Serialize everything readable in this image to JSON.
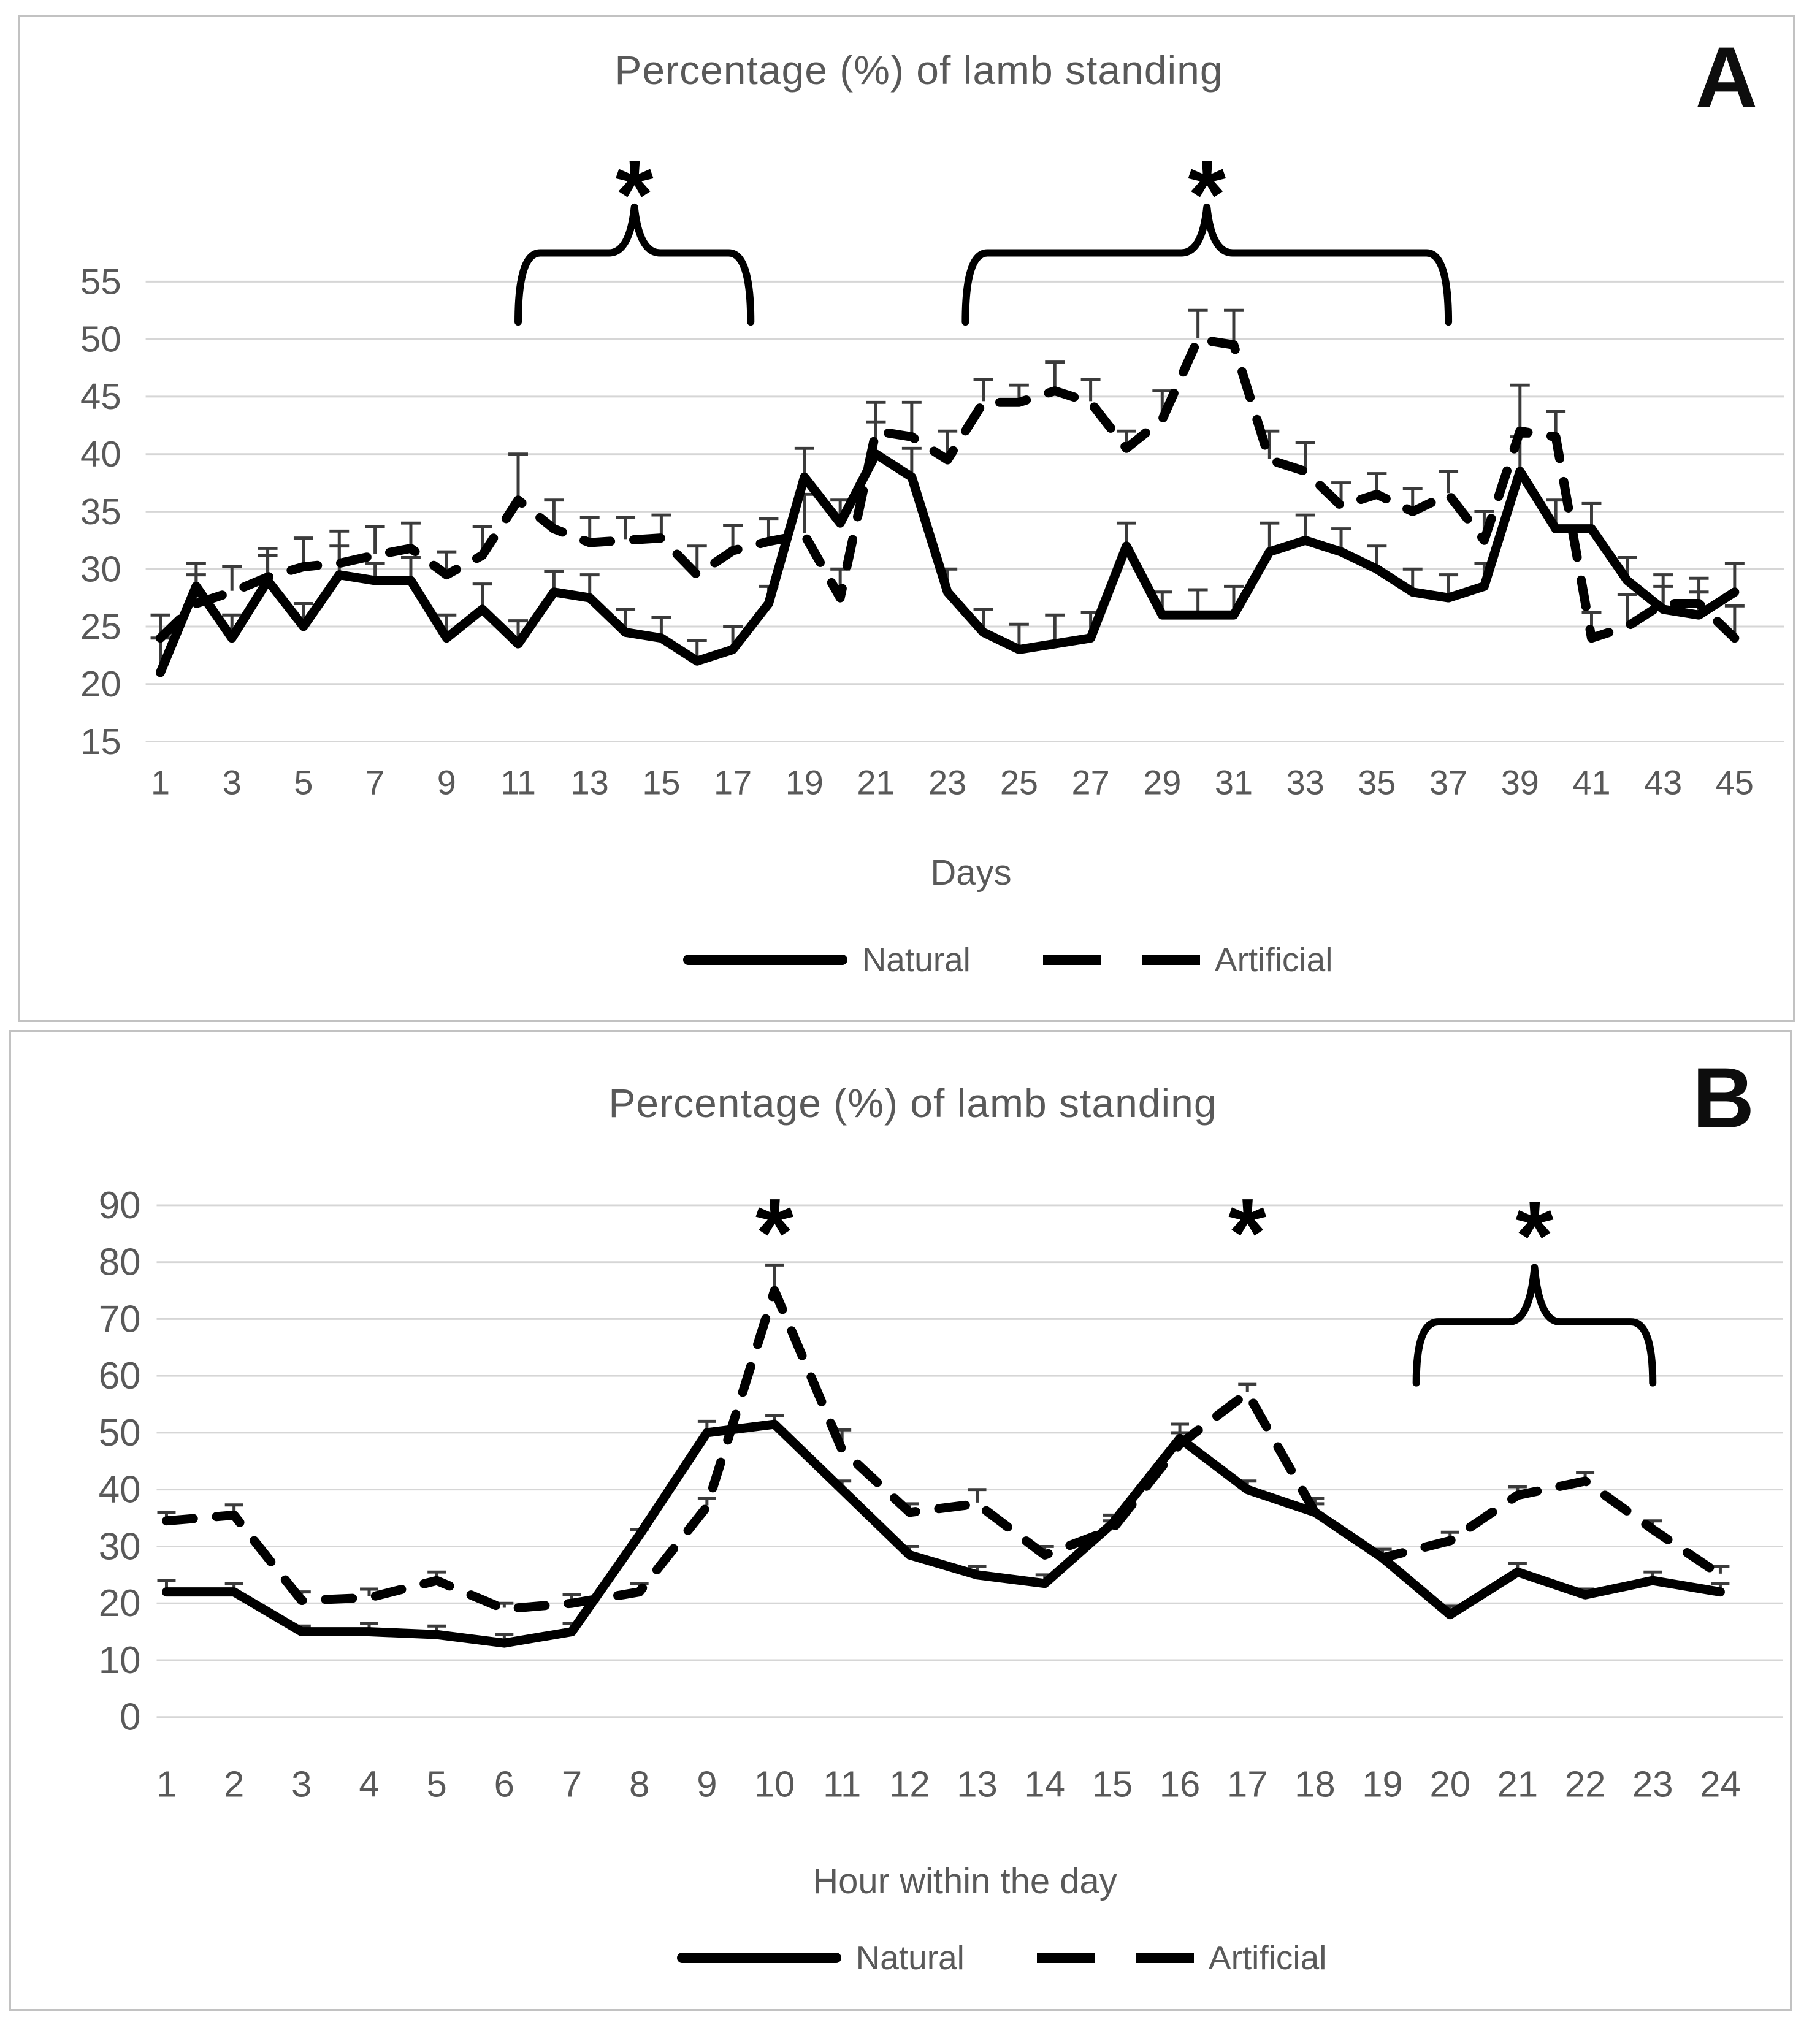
{
  "colors": {
    "line": "#000000",
    "text": "#595959",
    "grid": "#d6d6d6",
    "panel_border": "#c2c2c2",
    "error_bar": "#3b3b3b",
    "annotation": "#000000"
  },
  "chart_data": [
    {
      "type": "line",
      "panel_letter": "A",
      "title": "Percentage (%) of lamb standing",
      "xlabel": "Days",
      "ylabel": "",
      "ylim": [
        15,
        55
      ],
      "grid": true,
      "legend_position": "bottom",
      "y_ticks": [
        15,
        20,
        25,
        30,
        35,
        40,
        45,
        50,
        55
      ],
      "x": [
        1,
        2,
        3,
        4,
        5,
        6,
        7,
        8,
        9,
        10,
        11,
        12,
        13,
        14,
        15,
        16,
        17,
        18,
        19,
        20,
        21,
        22,
        23,
        24,
        25,
        26,
        27,
        28,
        29,
        30,
        31,
        32,
        33,
        34,
        35,
        36,
        37,
        38,
        39,
        40,
        41,
        42,
        43,
        44,
        45
      ],
      "x_tick_values": [
        1,
        3,
        5,
        7,
        9,
        11,
        13,
        15,
        17,
        19,
        21,
        23,
        25,
        27,
        29,
        31,
        33,
        35,
        37,
        39,
        41,
        43,
        45
      ],
      "x_tick_labels": [
        "1",
        "3",
        "5",
        "7",
        "9",
        "11",
        "13",
        "15",
        "17",
        "19",
        "21",
        "23",
        "25",
        "27",
        "29",
        "31",
        "33",
        "35",
        "37",
        "39",
        "41",
        "43",
        "45"
      ],
      "series": [
        {
          "name": "Natural",
          "style": "solid",
          "values": [
            21,
            28.5,
            24,
            29,
            25,
            29.5,
            29,
            29,
            24,
            26.5,
            23.5,
            28,
            27.5,
            24.5,
            24,
            22,
            23,
            27,
            38,
            34,
            40,
            38,
            28,
            24.5,
            23,
            23.5,
            24,
            32,
            26,
            26,
            26,
            31.5,
            32.5,
            31.5,
            30,
            28,
            27.5,
            28.5,
            38.5,
            33.5,
            33.5,
            29,
            26.5,
            26,
            28
          ],
          "err": [
            3,
            2,
            2,
            2.2,
            2,
            2.5,
            1.5,
            2,
            2,
            2.2,
            2,
            1.8,
            2,
            2,
            1.8,
            1.8,
            2,
            1.5,
            2.5,
            2,
            2.8,
            2.5,
            2,
            2,
            2.2,
            2.5,
            2.2,
            2,
            2,
            2.2,
            2.5,
            2.5,
            2.2,
            2,
            2,
            2,
            2,
            2,
            3,
            2.5,
            2.2,
            2,
            2,
            2,
            2.5
          ]
        },
        {
          "name": "Artificial",
          "style": "dashed",
          "values": [
            24,
            27,
            28,
            29.3,
            30.2,
            30.5,
            31.2,
            31.8,
            29.5,
            31.2,
            36,
            33.5,
            32.3,
            32.5,
            32.7,
            29.5,
            31.6,
            32.4,
            33,
            27.5,
            42,
            41.5,
            39.5,
            44.5,
            44.5,
            45.5,
            44.5,
            40.5,
            43,
            50,
            49.5,
            39.5,
            38.5,
            35.5,
            36.5,
            35,
            36.5,
            32.5,
            42,
            41.5,
            24,
            25,
            27,
            27,
            24
          ],
          "err": [
            2,
            2.5,
            2.2,
            2.5,
            2.5,
            2.8,
            2.5,
            2.2,
            2,
            2.5,
            4,
            2.5,
            2.2,
            2,
            2,
            2.5,
            2.2,
            2,
            3.5,
            2.5,
            2.5,
            3,
            2.5,
            2,
            1.5,
            2.5,
            2,
            1.5,
            2.5,
            2.5,
            3,
            2.5,
            2.5,
            2,
            1.8,
            2,
            2,
            2.5,
            4,
            2.2,
            2.2,
            2.8,
            2.5,
            2.2,
            2.8
          ]
        }
      ],
      "annotations": {
        "asterisks": [
          {
            "x": 14.25,
            "y": 64
          },
          {
            "x": 30.25,
            "y": 64
          }
        ],
        "braces": [
          {
            "x_start": 11,
            "x_end": 17.5,
            "y": 57.5
          },
          {
            "x_start": 23.5,
            "x_end": 37,
            "y": 57.5
          }
        ]
      }
    },
    {
      "type": "line",
      "panel_letter": "B",
      "title": "Percentage (%) of lamb standing",
      "xlabel": "Hour within the day",
      "ylabel": "",
      "ylim": [
        0,
        90
      ],
      "grid": true,
      "legend_position": "bottom",
      "y_ticks": [
        0,
        10,
        20,
        30,
        40,
        50,
        60,
        70,
        80,
        90
      ],
      "x": [
        1,
        2,
        3,
        4,
        5,
        6,
        7,
        8,
        9,
        10,
        11,
        12,
        13,
        14,
        15,
        16,
        17,
        18,
        19,
        20,
        21,
        22,
        23,
        24
      ],
      "x_tick_values": [
        1,
        2,
        3,
        4,
        5,
        6,
        7,
        8,
        9,
        10,
        11,
        12,
        13,
        14,
        15,
        16,
        17,
        18,
        19,
        20,
        21,
        22,
        23,
        24
      ],
      "x_tick_labels": [
        "1",
        "2",
        "3",
        "4",
        "5",
        "6",
        "7",
        "8",
        "9",
        "10",
        "11",
        "12",
        "13",
        "14",
        "15",
        "16",
        "17",
        "18",
        "19",
        "20",
        "21",
        "22",
        "23",
        "24"
      ],
      "series": [
        {
          "name": "Natural",
          "style": "solid",
          "values": [
            22,
            22,
            15,
            15,
            14.5,
            13,
            15,
            32,
            50,
            51.5,
            40,
            28.5,
            25,
            23.5,
            34,
            49,
            40,
            36,
            28,
            18,
            25.5,
            21.5,
            24,
            22
          ],
          "err": [
            2,
            1.5,
            1,
            1.5,
            1.5,
            1.5,
            1.5,
            1,
            2,
            1.5,
            1.5,
            1.5,
            1.5,
            1.5,
            1.5,
            2.5,
            1.5,
            1.5,
            1.5,
            1.5,
            1.5,
            1,
            1.5,
            1.5
          ]
        },
        {
          "name": "Artificial",
          "style": "dashed",
          "values": [
            34.5,
            35.5,
            20.5,
            21,
            24,
            19,
            20,
            22,
            37,
            75,
            47,
            36,
            37.5,
            28.5,
            33,
            48,
            57,
            36,
            28,
            31,
            39,
            41.5,
            33,
            25
          ],
          "err": [
            1.5,
            1.8,
            1.5,
            1.5,
            1.5,
            1,
            1.5,
            1.5,
            1.5,
            4.5,
            3.5,
            1.5,
            2.5,
            1.5,
            1.5,
            2,
            1.5,
            2.5,
            1.5,
            1.5,
            1.5,
            1.5,
            1.5,
            1.5
          ]
        }
      ],
      "annotations": {
        "asterisks": [
          {
            "x": 10,
            "y": 88
          },
          {
            "x": 17,
            "y": 88
          },
          {
            "x": 21.25,
            "y": 87.5
          }
        ],
        "braces": [
          {
            "x_start": 19.5,
            "x_end": 23,
            "y": 69.5
          }
        ]
      }
    }
  ]
}
